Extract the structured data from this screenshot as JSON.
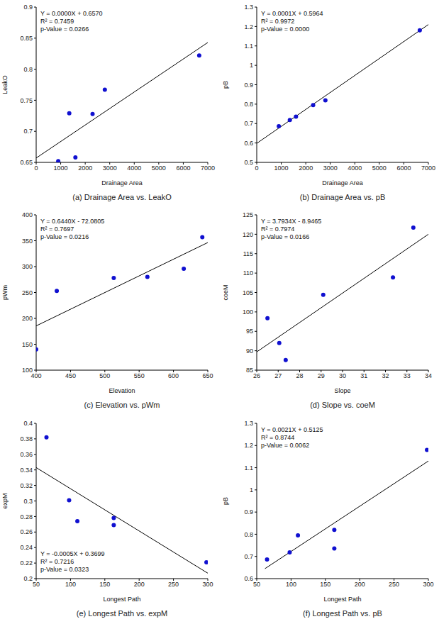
{
  "chart_data": [
    {
      "type": "scatter",
      "title": "(a) Drainage Area vs. LeakO",
      "x_label": "Drainage Area",
      "y_label": "LeakO",
      "annotations": [
        "Y = 0.0000X + 0.6570",
        "R² = 0.7459",
        "p-Value = 0.0266"
      ],
      "x": [
        900,
        1350,
        1600,
        2300,
        2800,
        6650
      ],
      "values": [
        0.652,
        0.729,
        0.658,
        0.728,
        0.767,
        0.822
      ],
      "color": "#1010d0",
      "marker": "circle",
      "fit_line": {
        "type": "line",
        "x": [
          0,
          7000
        ],
        "values": [
          0.657,
          0.843
        ],
        "color": "#000000"
      },
      "xlim": [
        0,
        7000
      ],
      "xticks": [
        0,
        1000,
        2000,
        3000,
        4000,
        5000,
        6000,
        7000
      ],
      "ylim": [
        0.65,
        0.9
      ],
      "yticks": [
        0.65,
        0.7,
        0.75,
        0.8,
        0.85,
        0.9
      ],
      "grid": false
    },
    {
      "type": "scatter",
      "title": "(b) Drainage Area vs. pB",
      "x_label": "Drainage Area",
      "y_label": "pB",
      "annotations": [
        "Y = 0.0001X + 0.5964",
        "R² = 0.9972",
        "p-Value = 0.0000"
      ],
      "x": [
        900,
        1350,
        1600,
        2300,
        2800,
        6650
      ],
      "values": [
        0.686,
        0.718,
        0.736,
        0.795,
        0.82,
        1.18
      ],
      "color": "#1010d0",
      "marker": "circle",
      "fit_line": {
        "type": "line",
        "x": [
          0,
          7000
        ],
        "values": [
          0.598,
          1.21
        ],
        "color": "#000000"
      },
      "xlim": [
        0,
        7000
      ],
      "xticks": [
        0,
        1000,
        2000,
        3000,
        4000,
        5000,
        6000,
        7000
      ],
      "ylim": [
        0.5,
        1.3
      ],
      "yticks": [
        0.5,
        0.6,
        0.7,
        0.8,
        0.9,
        1,
        1.1,
        1.2,
        1.3
      ],
      "grid": false
    },
    {
      "type": "scatter",
      "title": "(c) Elevation vs. pWm",
      "x_label": "Elevation",
      "y_label": "pWm",
      "annotations": [
        "Y = 0.6440X - 72.0805",
        "R² = 0.7697",
        "p-Value = 0.0216"
      ],
      "x": [
        400,
        430,
        513,
        562,
        615,
        642
      ],
      "values": [
        140,
        253,
        278,
        280,
        296,
        357
      ],
      "color": "#1010d0",
      "marker": "circle",
      "fit_line": {
        "type": "line",
        "x": [
          400,
          650
        ],
        "values": [
          185.5,
          346.5
        ],
        "color": "#000000"
      },
      "xlim": [
        400,
        650
      ],
      "xticks": [
        400,
        450,
        500,
        550,
        600,
        650
      ],
      "ylim": [
        100,
        400
      ],
      "yticks": [
        100,
        150,
        200,
        250,
        300,
        350,
        400
      ],
      "grid": false
    },
    {
      "type": "scatter",
      "title": "(d) Slope vs. coeM",
      "x_label": "Slope",
      "y_label": "coeM",
      "annotations": [
        "Y = 3.7934X - 8.9465",
        "R² = 0.7974",
        "p-Value = 0.0166"
      ],
      "x": [
        26.5,
        27.05,
        27.35,
        29.1,
        32.35,
        33.3
      ],
      "values": [
        98.4,
        92,
        87.6,
        104.4,
        108.9,
        121.7
      ],
      "color": "#1010d0",
      "marker": "circle",
      "fit_line": {
        "type": "line",
        "x": [
          26,
          34
        ],
        "values": [
          89.7,
          120
        ],
        "color": "#000000"
      },
      "xlim": [
        26,
        34
      ],
      "xticks": [
        26,
        27,
        28,
        29,
        30,
        31,
        32,
        33,
        34
      ],
      "ylim": [
        85,
        125
      ],
      "yticks": [
        85,
        90,
        95,
        100,
        105,
        110,
        115,
        120,
        125
      ],
      "grid": false
    },
    {
      "type": "scatter",
      "title": "(e) Longest Path vs. expM",
      "x_label": "Longest Path",
      "y_label": "expM",
      "annotations": [
        "Y = -0.0005X + 0.3699",
        "R² = 0.7216",
        "p-Value = 0.0323"
      ],
      "x": [
        65,
        98,
        110,
        163,
        163,
        298
      ],
      "values": [
        0.382,
        0.301,
        0.274,
        0.278,
        0.269,
        0.221
      ],
      "color": "#1010d0",
      "marker": "circle",
      "fit_line": {
        "type": "line",
        "x": [
          50,
          300
        ],
        "values": [
          0.343,
          0.207
        ],
        "color": "#000000"
      },
      "xlim": [
        50,
        300
      ],
      "xticks": [
        50,
        100,
        150,
        200,
        250,
        300
      ],
      "ylim": [
        0.2,
        0.4
      ],
      "yticks": [
        0.2,
        0.22,
        0.24,
        0.26,
        0.28,
        0.3,
        0.32,
        0.34,
        0.36,
        0.38,
        0.4
      ],
      "grid": false
    },
    {
      "type": "scatter",
      "title": "(f) Longest Path vs. pB",
      "x_label": "Longest Path",
      "y_label": "pB",
      "annotations": [
        "Y = 0.0021X + 0.5125",
        "R² = 0.8744",
        "p-Value = 0.0062"
      ],
      "x": [
        65,
        98,
        110,
        163,
        163,
        298
      ],
      "values": [
        0.686,
        0.718,
        0.795,
        0.82,
        0.736,
        1.18
      ],
      "color": "#1010d0",
      "marker": "circle",
      "fit_line": {
        "type": "line",
        "x": [
          62,
          300
        ],
        "values": [
          0.645,
          1.13
        ],
        "color": "#000000"
      },
      "xlim": [
        50,
        300
      ],
      "xticks": [
        50,
        100,
        150,
        200,
        250,
        300
      ],
      "ylim": [
        0.6,
        1.3
      ],
      "yticks": [
        0.6,
        0.7,
        0.8,
        0.9,
        1,
        1.1,
        1.2,
        1.3
      ],
      "grid": false
    }
  ]
}
